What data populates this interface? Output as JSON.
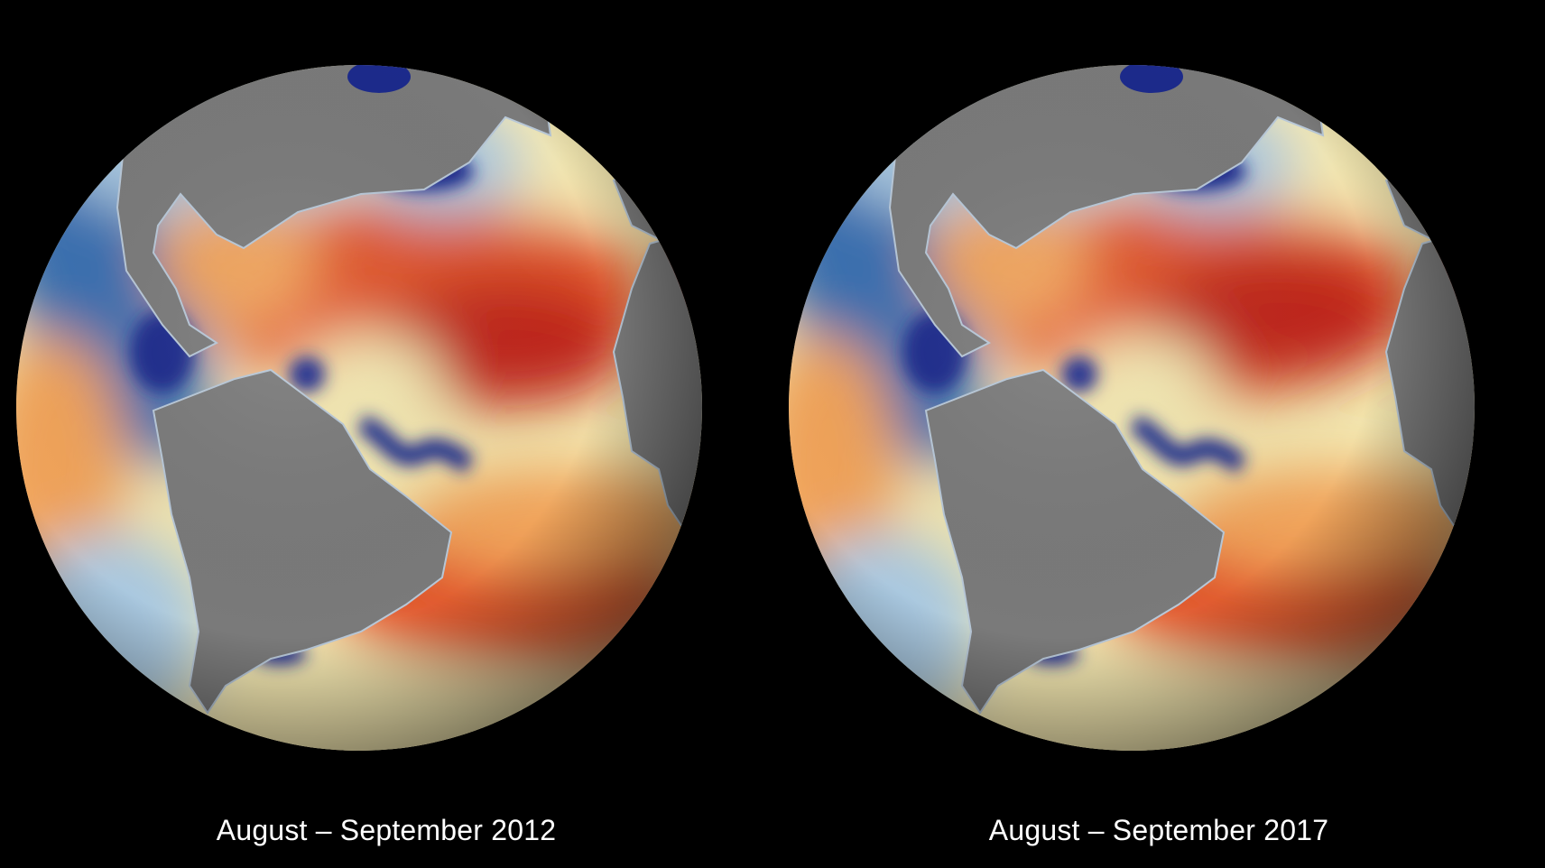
{
  "map": {
    "panels": [
      {
        "id": "globe-2012",
        "caption": "August – September 2012"
      },
      {
        "id": "globe-2017",
        "caption": "August – September 2017"
      }
    ],
    "colors": {
      "background": "#000000",
      "land": "#7a7a7a",
      "very_low": "#1c2a8c",
      "low": "#3b6fb0",
      "cool": "#a9c8e0",
      "neutral": "#f3e7b0",
      "warm": "#f0a35a",
      "high": "#e0542a",
      "very_high": "#c0281c",
      "extreme": "#8c0a1a"
    }
  }
}
